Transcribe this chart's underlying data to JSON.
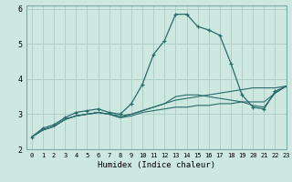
{
  "xlabel": "Humidex (Indice chaleur)",
  "bg_color": "#cce8e0",
  "grid_color": "#aaccc4",
  "line_color": "#2a6b6b",
  "xlim": [
    -0.5,
    23
  ],
  "ylim": [
    2,
    6.1
  ],
  "yticks": [
    2,
    3,
    4,
    5,
    6
  ],
  "xticks": [
    0,
    1,
    2,
    3,
    4,
    5,
    6,
    7,
    8,
    9,
    10,
    11,
    12,
    13,
    14,
    15,
    16,
    17,
    18,
    19,
    20,
    21,
    22,
    23
  ],
  "series": [
    {
      "x": [
        0,
        1,
        2,
        3,
        4,
        5,
        6,
        7,
        8,
        9,
        10,
        11,
        12,
        13,
        14,
        15,
        16,
        17,
        18,
        19,
        20,
        21,
        22,
        23
      ],
      "y": [
        2.35,
        2.6,
        2.7,
        2.9,
        3.05,
        3.1,
        3.15,
        3.05,
        3.0,
        3.3,
        3.85,
        4.7,
        5.1,
        5.85,
        5.85,
        5.5,
        5.4,
        5.25,
        4.45,
        3.55,
        3.2,
        3.15,
        3.65,
        3.8
      ],
      "marker": true
    },
    {
      "x": [
        0,
        1,
        2,
        3,
        4,
        5,
        6,
        7,
        8,
        9,
        10,
        11,
        12,
        13,
        14,
        15,
        16,
        17,
        18,
        19,
        20,
        21,
        22,
        23
      ],
      "y": [
        2.35,
        2.55,
        2.65,
        2.85,
        2.95,
        3.0,
        3.05,
        3.0,
        2.95,
        3.0,
        3.1,
        3.2,
        3.3,
        3.4,
        3.45,
        3.5,
        3.55,
        3.6,
        3.65,
        3.7,
        3.75,
        3.75,
        3.75,
        3.8
      ],
      "marker": false
    },
    {
      "x": [
        0,
        1,
        2,
        3,
        4,
        5,
        6,
        7,
        8,
        9,
        10,
        11,
        12,
        13,
        14,
        15,
        16,
        17,
        18,
        19,
        20,
        21,
        22,
        23
      ],
      "y": [
        2.35,
        2.55,
        2.65,
        2.85,
        2.95,
        3.0,
        3.05,
        3.0,
        2.9,
        2.95,
        3.05,
        3.1,
        3.15,
        3.2,
        3.2,
        3.25,
        3.25,
        3.3,
        3.3,
        3.35,
        3.35,
        3.35,
        3.6,
        3.8
      ],
      "marker": false
    },
    {
      "x": [
        0,
        1,
        2,
        3,
        4,
        5,
        6,
        7,
        8,
        9,
        10,
        11,
        12,
        13,
        14,
        15,
        16,
        17,
        18,
        19,
        20,
        21,
        22,
        23
      ],
      "y": [
        2.35,
        2.55,
        2.65,
        2.85,
        2.95,
        3.0,
        3.05,
        3.0,
        2.9,
        3.0,
        3.1,
        3.2,
        3.3,
        3.5,
        3.55,
        3.55,
        3.5,
        3.45,
        3.4,
        3.35,
        3.25,
        3.2,
        3.6,
        3.8
      ],
      "marker": false
    }
  ]
}
